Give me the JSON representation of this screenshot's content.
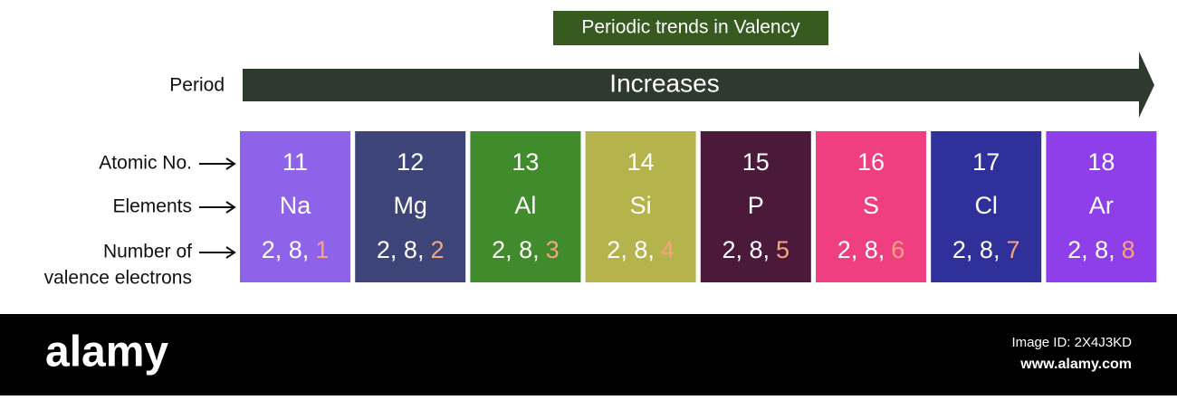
{
  "header": {
    "title": "Periodic trends in Valency"
  },
  "trend": {
    "row_label": "Period",
    "arrow_text": "Increases"
  },
  "row_labels": {
    "atomic_no": "Atomic No.",
    "elements": "Elements",
    "valence": [
      "Number of",
      "valence electrons"
    ]
  },
  "elements": [
    {
      "number": "11",
      "symbol": "Na",
      "shells": "2, 8,",
      "valence": "1",
      "color": "#8e63ea"
    },
    {
      "number": "12",
      "symbol": "Mg",
      "shells": "2, 8,",
      "valence": "2",
      "color": "#3d4578"
    },
    {
      "number": "13",
      "symbol": "Al",
      "shells": "2, 8,",
      "valence": "3",
      "color": "#408b2b"
    },
    {
      "number": "14",
      "symbol": "Si",
      "shells": "2, 8,",
      "valence": "4",
      "color": "#b5b34b"
    },
    {
      "number": "15",
      "symbol": "P",
      "shells": "2, 8,",
      "valence": "5",
      "color": "#4b1a3b"
    },
    {
      "number": "16",
      "symbol": "S",
      "shells": "2, 8,",
      "valence": "6",
      "color": "#ef3f80"
    },
    {
      "number": "17",
      "symbol": "Cl",
      "shells": "2, 8,",
      "valence": "7",
      "color": "#30309a"
    },
    {
      "number": "18",
      "symbol": "Ar",
      "shells": "2, 8,",
      "valence": "8",
      "color": "#8f3fea"
    }
  ],
  "highlight_color": "#f6a47e",
  "footer": {
    "brand": "alamy",
    "image_id": "Image ID: 2X4J3KD",
    "url": "www.alamy.com"
  }
}
